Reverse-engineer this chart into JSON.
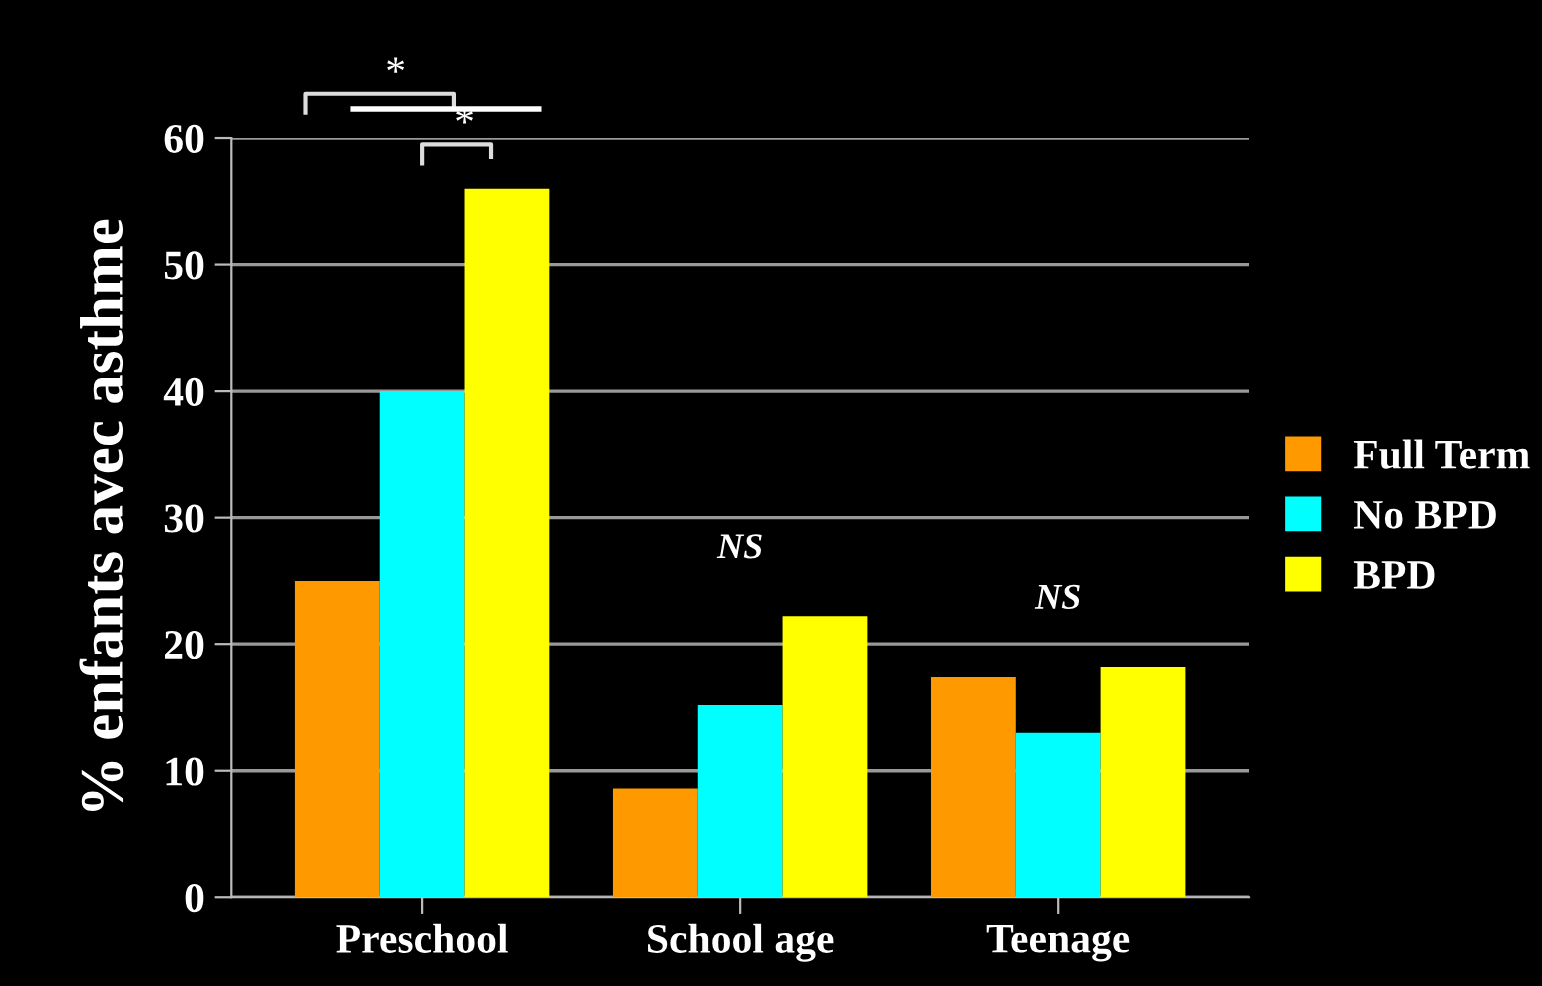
{
  "chart_data": {
    "type": "bar",
    "ylabel": "% enfants avec asthme",
    "categories": [
      "Preschool",
      "School age",
      "Teenage"
    ],
    "series": [
      {
        "name": "Full Term",
        "color": "#ff9900",
        "values": [
          25,
          8.6,
          17.4
        ]
      },
      {
        "name": "No BPD",
        "color": "#00ffff",
        "values": [
          40,
          15.2,
          13.0
        ]
      },
      {
        "name": "BPD",
        "color": "#ffff00",
        "values": [
          56,
          22.2,
          18.2
        ]
      }
    ],
    "ylim": [
      0,
      60
    ],
    "yticks": [
      0,
      10,
      20,
      30,
      40,
      50,
      60
    ],
    "grid": "y",
    "legend": "right",
    "annotations": [
      "*",
      "*",
      "NS",
      "NS"
    ]
  }
}
